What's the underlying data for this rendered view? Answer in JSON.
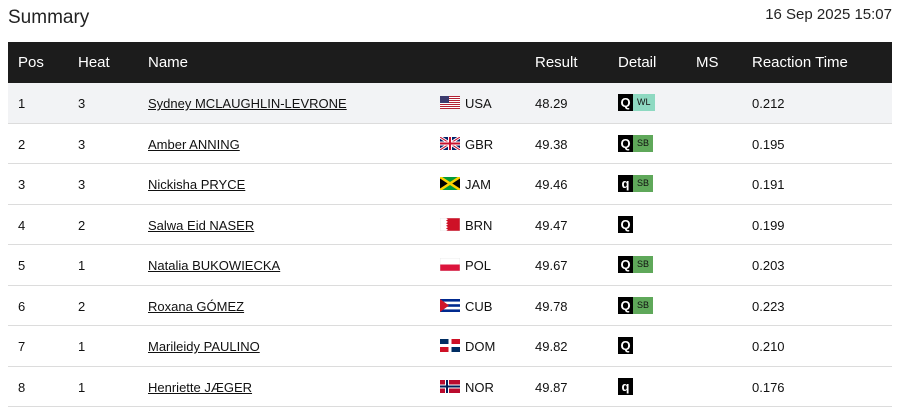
{
  "header": {
    "title": "Summary",
    "timestamp": "16 Sep 2025 15:07"
  },
  "table": {
    "columns": [
      "Pos",
      "Heat",
      "Name",
      "Result",
      "Detail",
      "MS",
      "Reaction Time"
    ],
    "rows": [
      {
        "pos": "1",
        "heat": "3",
        "name": "Sydney MCLAUGHLIN-LEVRONE",
        "country": "USA",
        "result": "48.29",
        "qualifier": "Q",
        "record": "WL",
        "reaction": "0.212"
      },
      {
        "pos": "2",
        "heat": "3",
        "name": "Amber ANNING",
        "country": "GBR",
        "result": "49.38",
        "qualifier": "Q",
        "record": "SB",
        "reaction": "0.195"
      },
      {
        "pos": "3",
        "heat": "3",
        "name": "Nickisha PRYCE",
        "country": "JAM",
        "result": "49.46",
        "qualifier": "q",
        "record": "SB",
        "reaction": "0.191"
      },
      {
        "pos": "4",
        "heat": "2",
        "name": "Salwa Eid NASER",
        "country": "BRN",
        "result": "49.47",
        "qualifier": "Q",
        "reaction": "0.199"
      },
      {
        "pos": "5",
        "heat": "1",
        "name": "Natalia BUKOWIECKA",
        "country": "POL",
        "result": "49.67",
        "qualifier": "Q",
        "record": "SB",
        "reaction": "0.203"
      },
      {
        "pos": "6",
        "heat": "2",
        "name": "Roxana GÓMEZ",
        "country": "CUB",
        "result": "49.78",
        "qualifier": "Q",
        "record": "SB",
        "reaction": "0.223"
      },
      {
        "pos": "7",
        "heat": "1",
        "name": "Marileidy PAULINO",
        "country": "DOM",
        "result": "49.82",
        "qualifier": "Q",
        "reaction": "0.210"
      },
      {
        "pos": "8",
        "heat": "1",
        "name": "Henriette JÆGER",
        "country": "NOR",
        "result": "49.87",
        "qualifier": "q",
        "reaction": "0.176"
      }
    ]
  }
}
